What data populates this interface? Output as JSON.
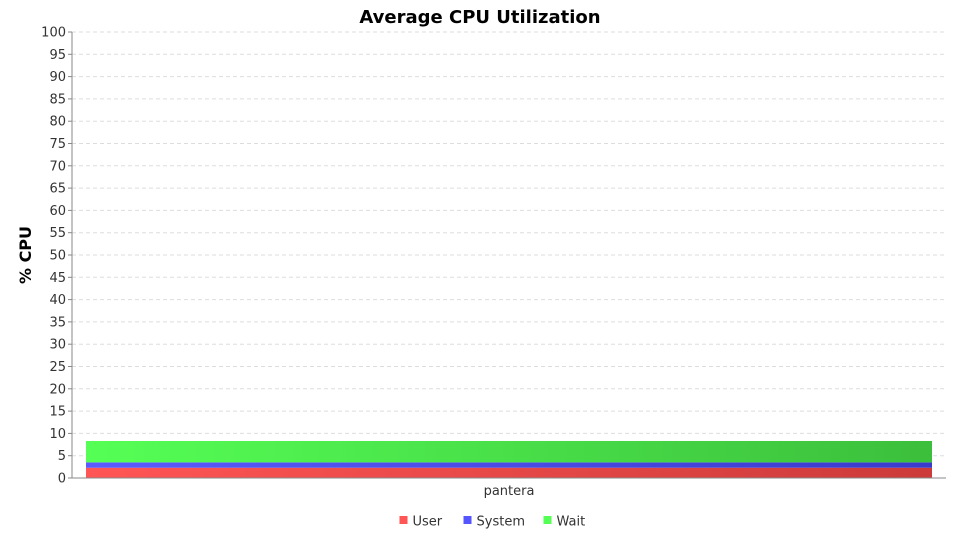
{
  "chart_data": {
    "type": "bar",
    "stacked": true,
    "title": "Average CPU Utilization",
    "xlabel": "",
    "ylabel": "% CPU",
    "ylim": [
      0,
      100
    ],
    "y_ticks": [
      "0",
      "5",
      "10",
      "15",
      "20",
      "25",
      "30",
      "35",
      "40",
      "45",
      "50",
      "55",
      "60",
      "65",
      "70",
      "75",
      "80",
      "85",
      "90",
      "95",
      "100"
    ],
    "categories": [
      "pantera"
    ],
    "series": [
      {
        "name": "User",
        "values": [
          2.3
        ],
        "color": "#ff5555"
      },
      {
        "name": "System",
        "values": [
          1.2
        ],
        "color": "#5555ff"
      },
      {
        "name": "Wait",
        "values": [
          4.8
        ],
        "color": "#55ff55"
      }
    ],
    "grid": true,
    "legend_position": "bottom"
  }
}
